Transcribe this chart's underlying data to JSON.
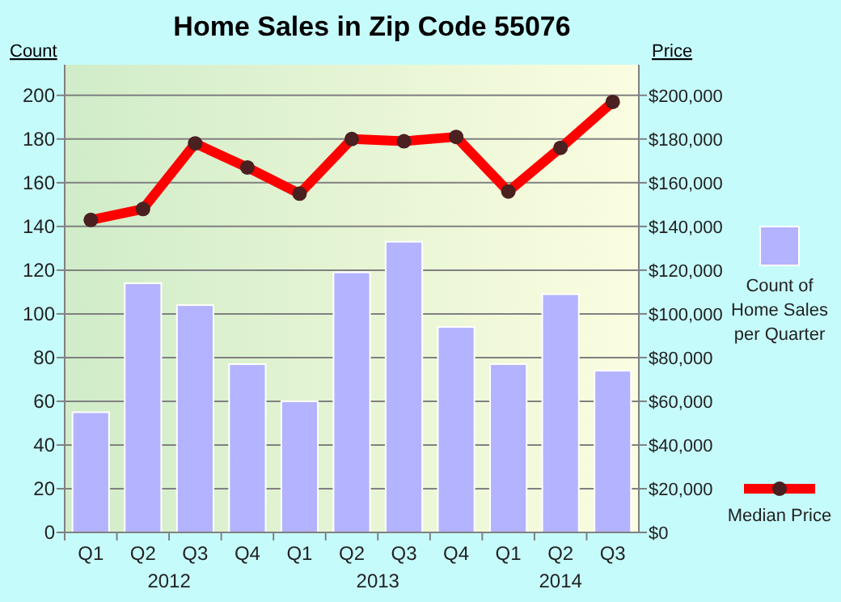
{
  "chart_data": {
    "type": "bar",
    "title": "Home Sales in Zip Code 55076",
    "ylabel": "Count",
    "y2label": "Price",
    "categories": [
      "Q1",
      "Q2",
      "Q3",
      "Q4",
      "Q1",
      "Q2",
      "Q3",
      "Q4",
      "Q1",
      "Q2",
      "Q3"
    ],
    "annotations": [
      "2012",
      "2013",
      "2014"
    ],
    "series": [
      {
        "name": "Count of Home Sales per Quarter",
        "color": "#b3b3ff",
        "values": [
          55,
          114,
          104,
          77,
          60,
          119,
          133,
          94,
          77,
          109,
          74
        ]
      },
      {
        "name": "Median Price",
        "type": "line",
        "color": "#ff0000",
        "axis": "y2",
        "marker": "circle",
        "values": [
          143000,
          148000,
          178000,
          167000,
          155000,
          180000,
          179000,
          181000,
          156000,
          176000,
          197000
        ]
      }
    ],
    "ylim": [
      0,
      214
    ],
    "yticks": [
      0,
      20,
      40,
      60,
      80,
      100,
      120,
      140,
      160,
      180,
      200
    ],
    "y2lim": [
      0,
      214000
    ],
    "y2ticks": [
      {
        "value": 0,
        "label": "$0"
      },
      {
        "value": 20000,
        "label": "$20,000"
      },
      {
        "value": 40000,
        "label": "$40,000"
      },
      {
        "value": 60000,
        "label": "$60,000"
      },
      {
        "value": 80000,
        "label": "$80,000"
      },
      {
        "value": 100000,
        "label": "$100,000"
      },
      {
        "value": 120000,
        "label": "$120,000"
      },
      {
        "value": 140000,
        "label": "$140,000"
      },
      {
        "value": 160000,
        "label": "$160,000"
      },
      {
        "value": 180000,
        "label": "$180,000"
      },
      {
        "value": 200000,
        "label": "$200,000"
      }
    ],
    "grid": "y",
    "legend": "right"
  }
}
